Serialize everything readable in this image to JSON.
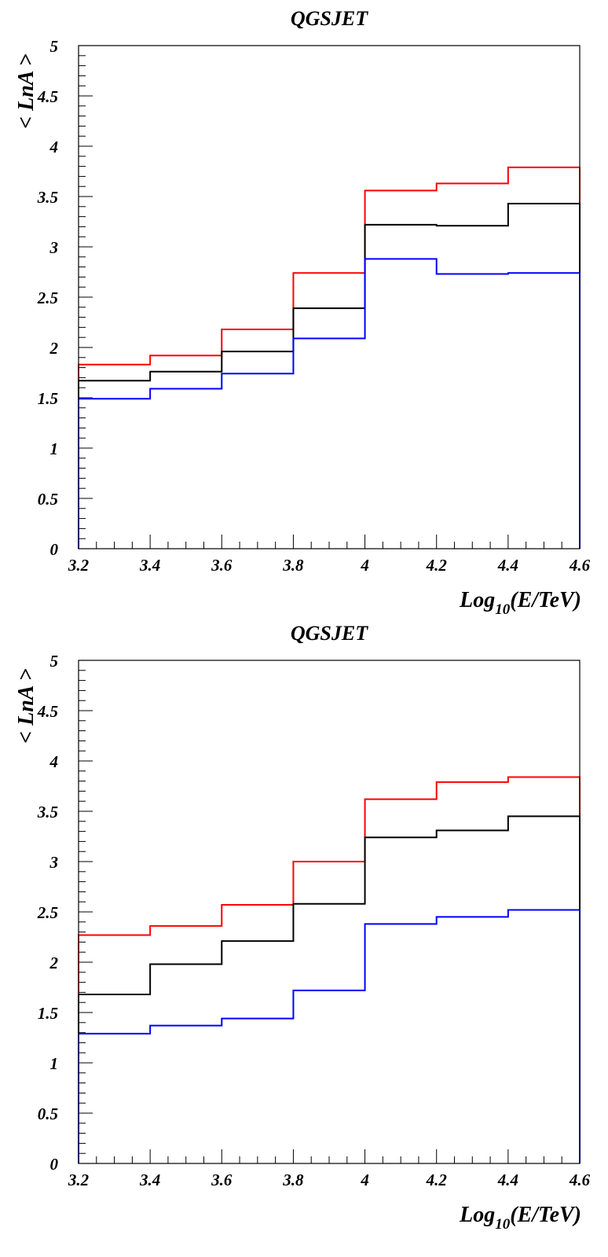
{
  "chart_data": [
    {
      "type": "line",
      "step": true,
      "title": "QGSJET",
      "xlabel": "Log",
      "xlabel_sub": "10",
      "xlabel_suffix": "(E/TeV)",
      "ylabel": "< LnA >",
      "xlim": [
        3.2,
        4.6
      ],
      "ylim": [
        0,
        5
      ],
      "xticks": [
        "3.2",
        "3.4",
        "3.6",
        "3.8",
        "4",
        "4.2",
        "4.4",
        "4.6"
      ],
      "yticks": [
        "0",
        "0.5",
        "1",
        "1.5",
        "2",
        "2.5",
        "3",
        "3.5",
        "4",
        "4.5",
        "5"
      ],
      "bin_edges": [
        3.2,
        3.4,
        3.6,
        3.8,
        4.0,
        4.2,
        4.4,
        4.6
      ],
      "series": [
        {
          "color": "#ff0000",
          "values": [
            1.83,
            1.92,
            2.18,
            2.74,
            3.56,
            3.63,
            3.79
          ]
        },
        {
          "color": "#000000",
          "values": [
            1.67,
            1.76,
            1.96,
            2.39,
            3.22,
            3.21,
            3.43
          ]
        },
        {
          "color": "#0000ff",
          "values": [
            1.49,
            1.59,
            1.74,
            2.09,
            2.88,
            2.73,
            2.74
          ]
        }
      ]
    },
    {
      "type": "line",
      "step": true,
      "title": "QGSJET",
      "xlabel": "Log",
      "xlabel_sub": "10",
      "xlabel_suffix": "(E/TeV)",
      "ylabel": "< LnA >",
      "xlim": [
        3.2,
        4.6
      ],
      "ylim": [
        0,
        5
      ],
      "xticks": [
        "3.2",
        "3.4",
        "3.6",
        "3.8",
        "4",
        "4.2",
        "4.4",
        "4.6"
      ],
      "yticks": [
        "0",
        "0.5",
        "1",
        "1.5",
        "2",
        "2.5",
        "3",
        "3.5",
        "4",
        "4.5",
        "5"
      ],
      "bin_edges": [
        3.2,
        3.4,
        3.6,
        3.8,
        4.0,
        4.2,
        4.4,
        4.6
      ],
      "series": [
        {
          "color": "#ff0000",
          "values": [
            2.27,
            2.36,
            2.57,
            3.0,
            3.62,
            3.79,
            3.84
          ]
        },
        {
          "color": "#000000",
          "values": [
            1.68,
            1.98,
            2.21,
            2.58,
            3.24,
            3.31,
            3.45
          ]
        },
        {
          "color": "#0000ff",
          "values": [
            1.29,
            1.37,
            1.44,
            1.72,
            2.38,
            2.45,
            2.52
          ]
        }
      ]
    }
  ]
}
